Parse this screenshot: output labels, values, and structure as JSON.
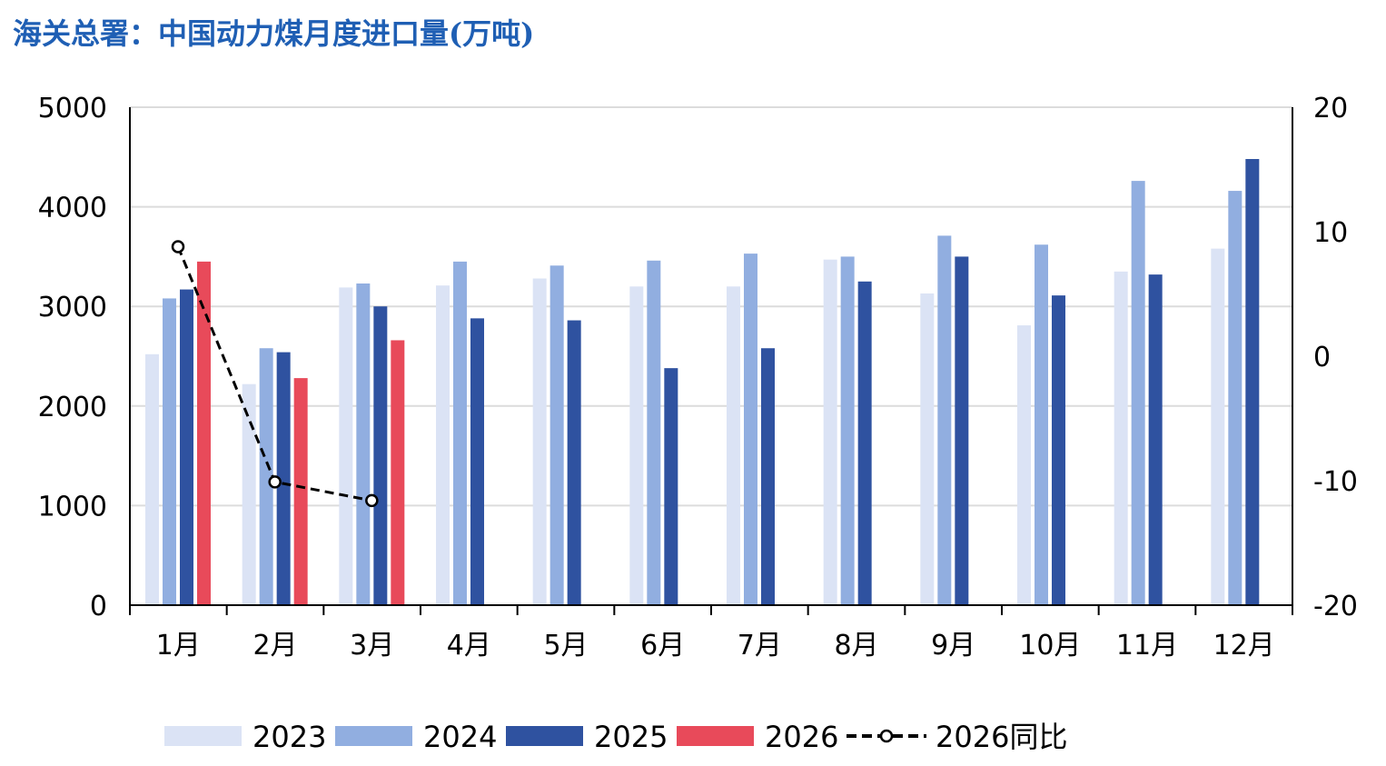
{
  "chart_data": {
    "type": "bar",
    "title": "海关总署：中国动力煤月度进口量(万吨)",
    "categories": [
      "1月",
      "2月",
      "3月",
      "4月",
      "5月",
      "6月",
      "7月",
      "8月",
      "9月",
      "10月",
      "11月",
      "12月"
    ],
    "series": [
      {
        "name": "2023",
        "color": "#dbe3f5",
        "values": [
          2520,
          2220,
          3190,
          3210,
          3280,
          3200,
          3200,
          3470,
          3130,
          2810,
          3350,
          3580
        ]
      },
      {
        "name": "2024",
        "color": "#91aee0",
        "values": [
          3080,
          2580,
          3230,
          3450,
          3410,
          3460,
          3530,
          3500,
          3710,
          3620,
          4260,
          4160
        ]
      },
      {
        "name": "2025",
        "color": "#2f52a0",
        "values": [
          3170,
          2540,
          3000,
          2880,
          2860,
          2380,
          2580,
          3250,
          3500,
          3110,
          3320,
          4480
        ]
      },
      {
        "name": "2026",
        "color": "#e84a5a",
        "values": [
          3450,
          2280,
          2660,
          null,
          null,
          null,
          null,
          null,
          null,
          null,
          null,
          null
        ]
      }
    ],
    "line_series": {
      "name": "2026同比",
      "axis": "right",
      "color": "#000000",
      "style": "dashed",
      "values": [
        8.8,
        -10.1,
        -11.6
      ]
    },
    "ylim": [
      0,
      5000
    ],
    "yticks": [
      "0",
      "1000",
      "2000",
      "3000",
      "4000",
      "5000"
    ],
    "y2lim": [
      -20,
      20
    ],
    "y2ticks": [
      "-20",
      "-10",
      "0",
      "10",
      "20"
    ],
    "grid": true,
    "legend_position": "bottom"
  }
}
